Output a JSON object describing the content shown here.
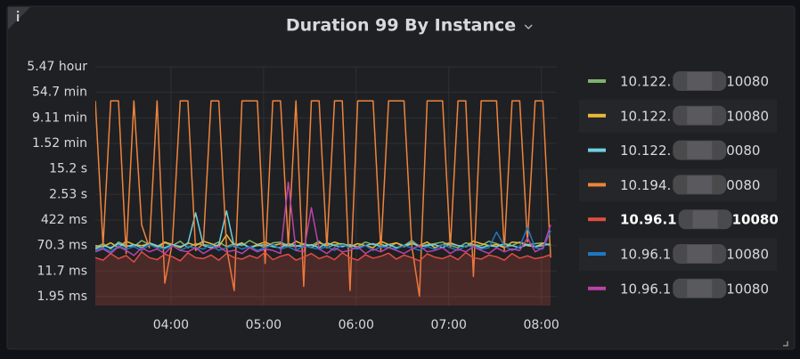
{
  "chart_data": {
    "type": "line",
    "title": "Duration 99 By Instance",
    "log_y": true,
    "grid": true,
    "legend": "right",
    "xlim": [
      191,
      490
    ],
    "xticks": [
      {
        "value": 240,
        "label": "04:00"
      },
      {
        "value": 300,
        "label": "05:00"
      },
      {
        "value": 360,
        "label": "06:00"
      },
      {
        "value": 420,
        "label": "07:00"
      },
      {
        "value": 480,
        "label": "08:00"
      }
    ],
    "ylim": [
      1.04,
      19692000
    ],
    "yticks": [
      {
        "value": 1.95,
        "label": "1.95 ms"
      },
      {
        "value": 11.7,
        "label": "11.7 ms"
      },
      {
        "value": 70.3,
        "label": "70.3 ms"
      },
      {
        "value": 422,
        "label": "422 ms"
      },
      {
        "value": 2530,
        "label": "2.53 s"
      },
      {
        "value": 15200,
        "label": "15.2 s"
      },
      {
        "value": 91200,
        "label": "1.52 min"
      },
      {
        "value": 546600,
        "label": "9.11 min"
      },
      {
        "value": 3282000,
        "label": "54.7 min"
      },
      {
        "value": 19692000,
        "label": "5.47 hour"
      }
    ],
    "x": [
      191,
      196,
      201,
      206,
      211,
      216,
      221,
      226,
      231,
      236,
      241,
      246,
      251,
      256,
      261,
      266,
      271,
      276,
      281,
      286,
      291,
      296,
      301,
      306,
      311,
      316,
      321,
      326,
      331,
      336,
      341,
      346,
      351,
      356,
      361,
      366,
      371,
      376,
      381,
      386,
      391,
      396,
      401,
      406,
      411,
      416,
      421,
      426,
      431,
      436,
      441,
      446,
      451,
      456,
      461,
      466,
      471,
      476,
      481,
      486
    ],
    "series": [
      {
        "name": "10.122.",
        "suffix": "10080",
        "color": "#7eb26d",
        "values": [
          60,
          80,
          55,
          90,
          70,
          65,
          100,
          75,
          60,
          85,
          70,
          95,
          60,
          80,
          75,
          70,
          90,
          65,
          80,
          70,
          100,
          75,
          60,
          85,
          90,
          70,
          65,
          80,
          70,
          95,
          60,
          75,
          80,
          70,
          65,
          90,
          75,
          80,
          60,
          85,
          70,
          100,
          65,
          75,
          80,
          90,
          70,
          60,
          85,
          75,
          70,
          95,
          80,
          65,
          70,
          90,
          75,
          80,
          85,
          70
        ]
      },
      {
        "name": "10.122.",
        "suffix": "10080",
        "color": "#eab839",
        "values": [
          70,
          65,
          85,
          60,
          95,
          75,
          70,
          80,
          65,
          90,
          75,
          60,
          85,
          70,
          95,
          80,
          65,
          150,
          70,
          85,
          60,
          75,
          90,
          70,
          80,
          65,
          95,
          75,
          60,
          85,
          70,
          90,
          75,
          65,
          80,
          70,
          60,
          95,
          75,
          85,
          65,
          80,
          70,
          90,
          60,
          75,
          85,
          70,
          65,
          95,
          80,
          70,
          75,
          60,
          90,
          85,
          70,
          65,
          80,
          75
        ]
      },
      {
        "name": "10.122.",
        "suffix": "0080",
        "color": "#6ed0e0",
        "values": [
          55,
          70,
          60,
          80,
          65,
          75,
          60,
          85,
          70,
          60,
          75,
          65,
          80,
          700,
          70,
          60,
          75,
          800,
          65,
          80,
          60,
          70,
          75,
          65,
          60,
          80,
          70,
          65,
          75,
          60,
          85,
          70,
          65,
          75,
          60,
          70,
          80,
          65,
          75,
          60,
          70,
          85,
          65,
          70,
          75,
          60,
          80,
          70,
          65,
          75,
          60,
          70,
          65,
          80,
          70,
          60,
          75,
          65,
          70,
          80
        ]
      },
      {
        "name": "10.194.",
        "suffix": "0080",
        "color": "#ef843c",
        "values": [
          1800000,
          70,
          1800000,
          1800000,
          40,
          1800000,
          300,
          60,
          1800000,
          5,
          90,
          1800000,
          1800000,
          50,
          80,
          1800000,
          1800000,
          60,
          3,
          1800000,
          1800000,
          1800000,
          20,
          1800000,
          1800000,
          70,
          1800000,
          4,
          1800000,
          1800000,
          60,
          1800000,
          1800000,
          3,
          1800000,
          1800000,
          1800000,
          50,
          1800000,
          1800000,
          1800000,
          70,
          2,
          1800000,
          1800000,
          1800000,
          60,
          1800000,
          1800000,
          8,
          1800000,
          1800000,
          1800000,
          50,
          1800000,
          1800000,
          90,
          1800000,
          1800000,
          30
        ]
      },
      {
        "name": "10.96.1",
        "suffix": "10080",
        "color": "#e24d42",
        "fill": 0.22,
        "values": [
          30,
          25,
          40,
          28,
          35,
          22,
          45,
          30,
          26,
          38,
          32,
          24,
          42,
          30,
          28,
          36,
          25,
          40,
          30,
          27,
          35,
          29,
          44,
          26,
          33,
          38,
          25,
          31,
          40,
          28,
          34,
          26,
          42,
          30,
          25,
          37,
          29,
          33,
          41,
          27,
          36,
          30,
          24,
          39,
          31,
          28,
          35,
          26,
          43,
          30,
          27,
          36,
          32,
          25,
          40,
          29,
          34,
          28,
          31,
          37
        ]
      },
      {
        "name": "10.96.1",
        "suffix": "10080",
        "color": "#1f78c1",
        "values": [
          50,
          60,
          45,
          70,
          55,
          65,
          50,
          75,
          60,
          55,
          70,
          50,
          65,
          60,
          55,
          75,
          50,
          60,
          70,
          55,
          65,
          50,
          60,
          75,
          55,
          65,
          50,
          70,
          60,
          55,
          65,
          50,
          75,
          60,
          55,
          70,
          50,
          65,
          60,
          55,
          70,
          60,
          50,
          65,
          55,
          75,
          60,
          50,
          70,
          65,
          55,
          60,
          180,
          70,
          50,
          65,
          250,
          60,
          55,
          200
        ]
      },
      {
        "name": "10.96.1",
        "suffix": "10080",
        "color": "#ba43a9",
        "values": [
          45,
          55,
          40,
          65,
          50,
          35,
          60,
          45,
          55,
          40,
          70,
          50,
          45,
          60,
          40,
          55,
          65,
          45,
          50,
          40,
          60,
          45,
          55,
          50,
          40,
          6000,
          50,
          45,
          1000,
          55,
          40,
          60,
          45,
          50,
          65,
          40,
          55,
          45,
          60,
          50,
          40,
          55,
          70,
          45,
          50,
          60,
          40,
          55,
          45,
          65,
          50,
          40,
          60,
          45,
          55,
          50,
          120,
          45,
          60,
          300
        ]
      }
    ]
  }
}
